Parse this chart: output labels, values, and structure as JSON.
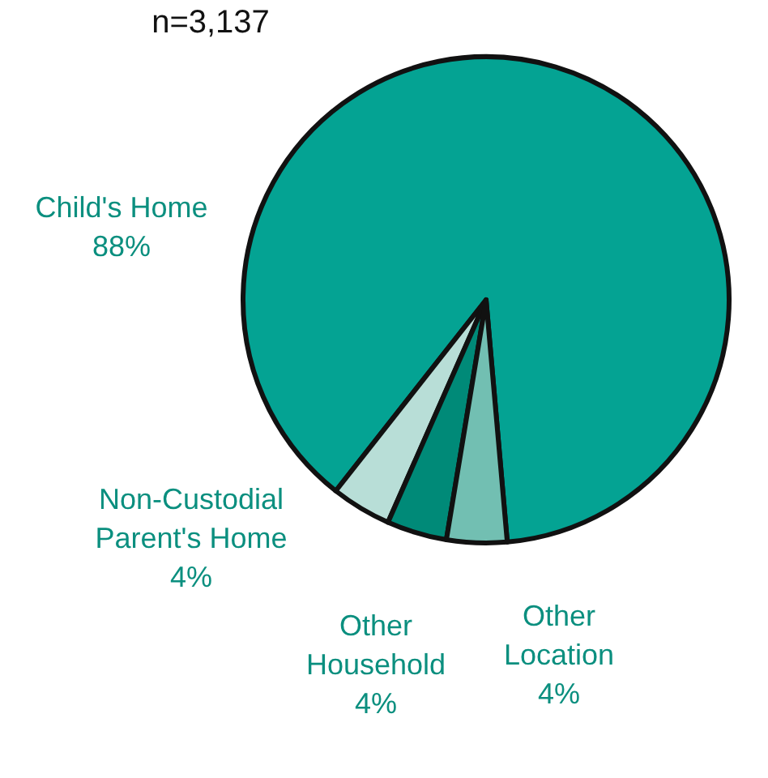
{
  "chart_data": {
    "type": "pie",
    "title": "n=3,137",
    "categories": [
      "Child's Home",
      "Non-Custodial Parent's Home",
      "Other Household",
      "Other Location"
    ],
    "values": [
      88,
      4,
      4,
      4
    ],
    "colors": [
      "#04a393",
      "#b8ded7",
      "#008a78",
      "#72bfb2"
    ],
    "value_labels": [
      "88%",
      "4%",
      "4%",
      "4%"
    ]
  }
}
